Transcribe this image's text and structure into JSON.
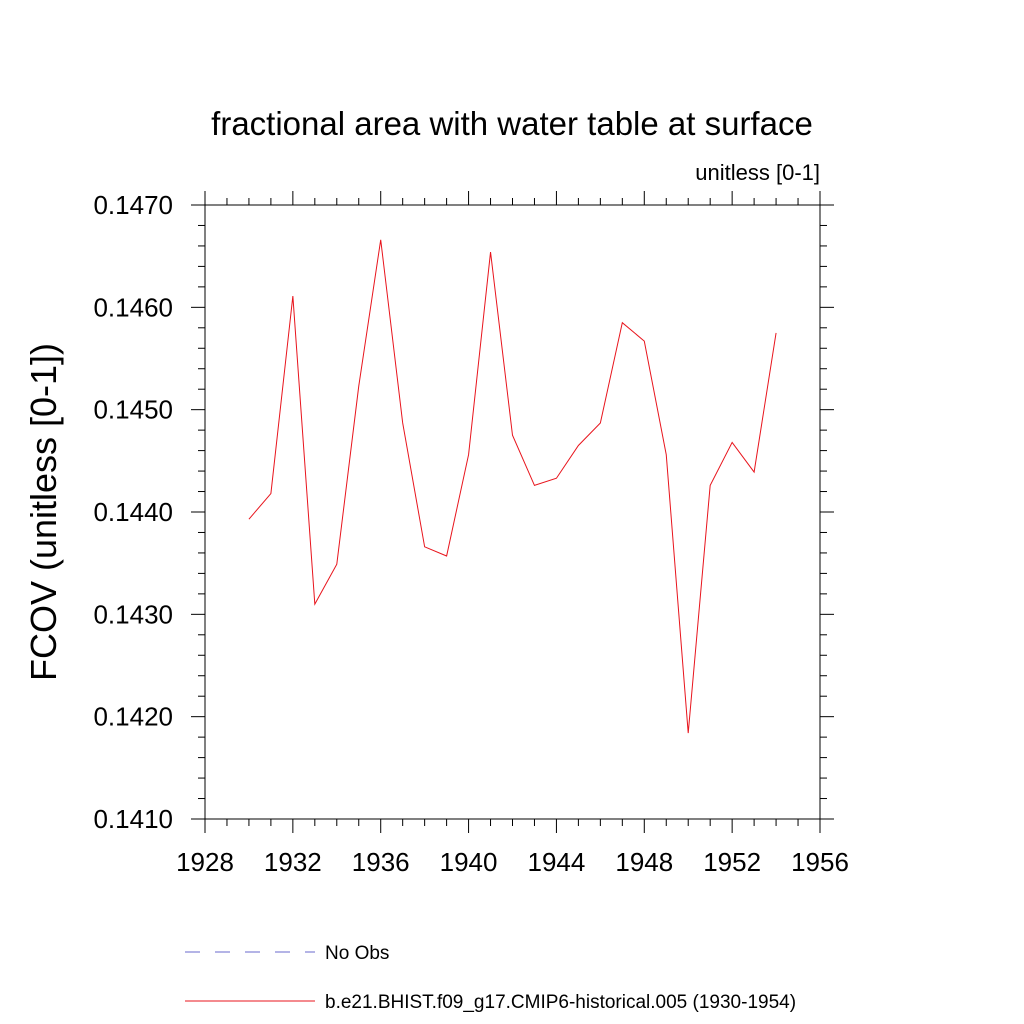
{
  "chart_data": {
    "type": "line",
    "title": "fractional area with water table at surface",
    "subtitle": "unitless [0-1]",
    "xlabel": "",
    "ylabel": "FCOV  (unitless [0-1])",
    "xlim": [
      1928,
      1956
    ],
    "ylim": [
      0.141,
      0.147
    ],
    "x_ticks": [
      "1928",
      "1932",
      "1936",
      "1940",
      "1944",
      "1948",
      "1952",
      "1956"
    ],
    "y_ticks": [
      "0.1410",
      "0.1420",
      "0.1430",
      "0.1440",
      "0.1450",
      "0.1460",
      "0.1470"
    ],
    "grid": false,
    "legend_position": "bottom",
    "legend": [
      {
        "label": "No Obs",
        "style": "dashed",
        "color": "#6a6acd"
      },
      {
        "label": "b.e21.BHIST.f09_g17.CMIP6-historical.005 (1930-1954)",
        "style": "solid",
        "color": "#e8141c"
      }
    ],
    "series": [
      {
        "color": "#e8141c",
        "x": [
          1930,
          1931,
          1932,
          1933,
          1934,
          1935,
          1936,
          1937,
          1938,
          1939,
          1940,
          1941,
          1942,
          1943,
          1944,
          1945,
          1946,
          1947,
          1948,
          1949,
          1950,
          1951,
          1952,
          1953,
          1954
        ],
        "y": [
          0.14393,
          0.14418,
          0.14611,
          0.1431,
          0.14349,
          0.14523,
          0.14666,
          0.14487,
          0.14366,
          0.14357,
          0.14456,
          0.14654,
          0.14475,
          0.14426,
          0.14433,
          0.14465,
          0.14487,
          0.14585,
          0.14567,
          0.14456,
          0.14184,
          0.14426,
          0.14468,
          0.14439,
          0.14575
        ]
      }
    ]
  }
}
